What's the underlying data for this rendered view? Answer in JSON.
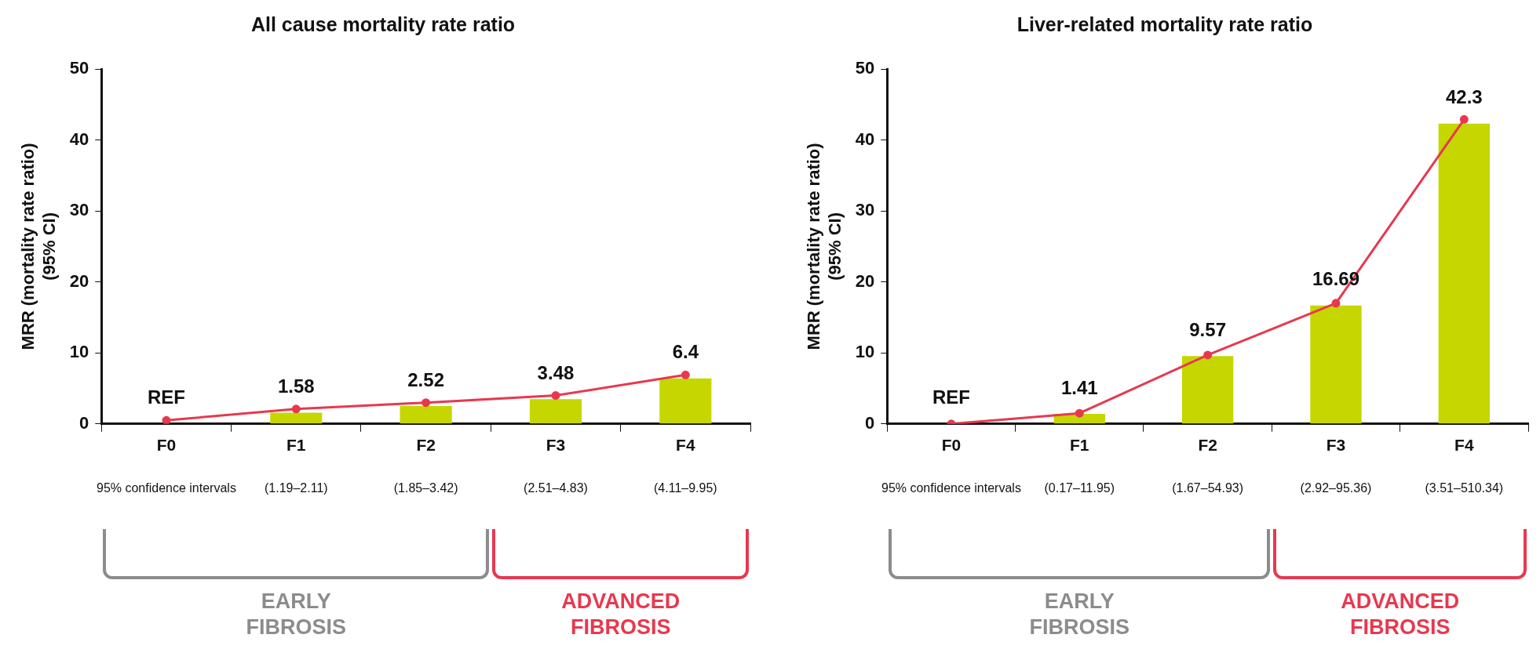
{
  "chart_data": [
    {
      "type": "bar",
      "title": "All cause mortality rate ratio",
      "ylabel": "MRR (mortality rate ratio)\n(95% CI)",
      "categories": [
        "F0",
        "F1",
        "F2",
        "F3",
        "F4"
      ],
      "series": [
        {
          "color": "#c5d600",
          "values": [
            null,
            1.58,
            2.52,
            3.48,
            6.4
          ],
          "value_labels": [
            "REF",
            "1.58",
            "2.52",
            "3.48",
            "6.4"
          ]
        },
        {
          "type": "line",
          "color": "#e8384f",
          "values": [
            0.5,
            2.1,
            3.0,
            4.0,
            6.9
          ],
          "marker": "circle",
          "line_style": "solid"
        }
      ],
      "ylim": [
        0,
        50
      ],
      "yticks": [
        0,
        10,
        20,
        30,
        40,
        50
      ],
      "grid": false,
      "legend": false,
      "annotations": [
        "95% confidence intervals",
        "(1.19–2.11)",
        "(1.85–3.42)",
        "(2.51–4.83)",
        "(4.11–9.95)",
        "EARLY FIBROSIS",
        "ADVANCED FIBROSIS"
      ]
    },
    {
      "type": "bar",
      "title": "Liver-related mortality rate ratio",
      "ylabel": "MRR (mortality rate ratio)\n(95% CI)",
      "categories": [
        "F0",
        "F1",
        "F2",
        "F3",
        "F4"
      ],
      "series": [
        {
          "color": "#c5d600",
          "values": [
            null,
            1.41,
            9.57,
            16.69,
            42.3
          ],
          "value_labels": [
            "REF",
            "1.41",
            "9.57",
            "16.69",
            "42.3"
          ]
        },
        {
          "type": "line",
          "color": "#e8384f",
          "values": [
            0,
            1.5,
            9.7,
            17.0,
            42.9
          ],
          "marker": "circle",
          "line_style": "solid"
        }
      ],
      "ylim": [
        0,
        50
      ],
      "yticks": [
        0,
        10,
        20,
        30,
        40,
        50
      ],
      "grid": false,
      "legend": false,
      "annotations": [
        "95% confidence intervals",
        "(0.17–11.95)",
        "(1.67–54.93)",
        "(2.92–95.36)",
        "(3.51–510.34)",
        "EARLY FIBROSIS",
        "ADVANCED FIBROSIS"
      ]
    }
  ]
}
